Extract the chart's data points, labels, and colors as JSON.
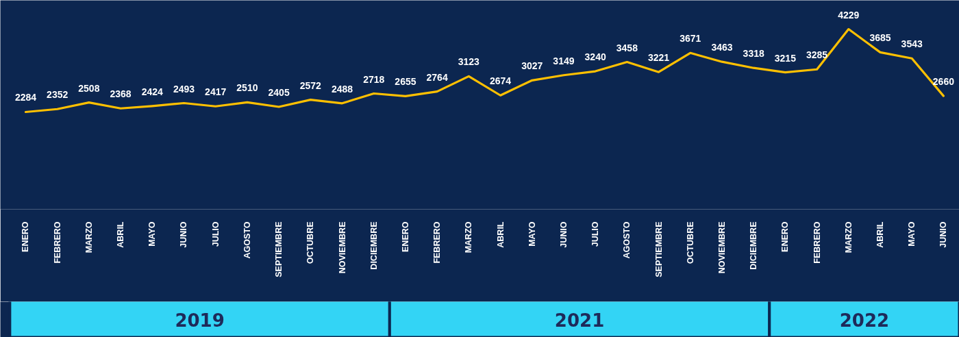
{
  "chart_data": {
    "type": "line",
    "categories": [
      "ENERO",
      "FEBRERO",
      "MARZO",
      "ABRIL",
      "MAYO",
      "JUNIO",
      "JULIO",
      "AGOSTO",
      "SEPTIEMBRE",
      "OCTUBRE",
      "NOVIEMBRE",
      "DICIEMBRE",
      "ENERO",
      "FEBRERO",
      "MARZO",
      "ABRIL",
      "MAYO",
      "JUNIO",
      "JULIO",
      "AGOSTO",
      "SEPTIEMBRE",
      "OCTUBRE",
      "NOVIEMBRE",
      "DICIEMBRE",
      "ENERO",
      "FEBRERO",
      "MARZO",
      "ABRIL",
      "MAYO",
      "JUNIO"
    ],
    "series": [
      {
        "color": "#ffc000",
        "values": [
          2284,
          2352,
          2508,
          2368,
          2424,
          2493,
          2417,
          2510,
          2405,
          2572,
          2488,
          2718,
          2655,
          2764,
          3123,
          2674,
          3027,
          3149,
          3240,
          3458,
          3221,
          3671,
          3463,
          3318,
          3215,
          3285,
          4229,
          3685,
          3543,
          2660
        ]
      }
    ],
    "data_labels": true,
    "marker": "none",
    "line_style": "solid",
    "tick_labels": "x",
    "annotations": [
      "2019",
      "2021",
      "2022"
    ]
  }
}
